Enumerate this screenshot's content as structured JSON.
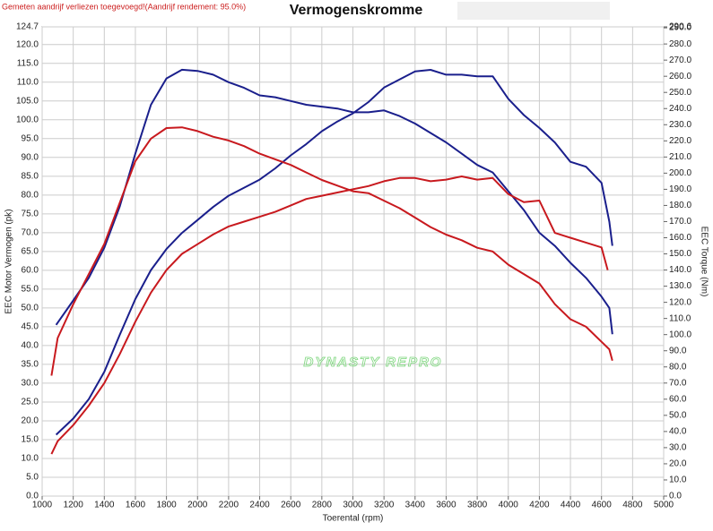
{
  "chart_data": {
    "type": "line",
    "title": "Vermogenskromme",
    "subtitle": "Gemeten aandrijf verliezen toegevoegd!(Aandrijf rendement: 95.0%)",
    "x_label": "Toerental (rpm)",
    "y_label": "EEC Motor Vermogen (pk)",
    "y2_label": "EEC Torque (Nm)",
    "watermark": "DYNASTY REPRO",
    "grid": true,
    "xlim": [
      1000,
      5000
    ],
    "xticks": [
      1000,
      1200,
      1400,
      1600,
      1800,
      2000,
      2200,
      2400,
      2600,
      2800,
      3000,
      3200,
      3400,
      3600,
      3800,
      4000,
      4200,
      4400,
      4600,
      4800,
      5000
    ],
    "ylim": [
      0,
      124.7
    ],
    "yticks": [
      {
        "value": 0,
        "label": "0.0"
      },
      {
        "value": 5,
        "label": "5.0"
      },
      {
        "value": 10,
        "label": "10.0"
      },
      {
        "value": 15,
        "label": "15.0"
      },
      {
        "value": 20,
        "label": "20.0"
      },
      {
        "value": 25,
        "label": "25.0"
      },
      {
        "value": 30,
        "label": "30.0"
      },
      {
        "value": 35,
        "label": "35.0"
      },
      {
        "value": 40,
        "label": "40.0"
      },
      {
        "value": 45,
        "label": "45.0"
      },
      {
        "value": 50,
        "label": "50.0"
      },
      {
        "value": 55,
        "label": "55.0"
      },
      {
        "value": 60,
        "label": "60.0"
      },
      {
        "value": 65,
        "label": "65.0"
      },
      {
        "value": 70,
        "label": "70.0"
      },
      {
        "value": 75,
        "label": "75.0"
      },
      {
        "value": 80,
        "label": "80.0"
      },
      {
        "value": 85,
        "label": "85.0"
      },
      {
        "value": 90,
        "label": "90.0"
      },
      {
        "value": 95,
        "label": "95.0"
      },
      {
        "value": 100,
        "label": "100.0"
      },
      {
        "value": 105,
        "label": "105.0"
      },
      {
        "value": 110,
        "label": "110.0"
      },
      {
        "value": 115,
        "label": "115.0"
      },
      {
        "value": 120,
        "label": "120.0"
      },
      124.7
    ],
    "y2lim": [
      0,
      290.6
    ],
    "y2ticks": [
      {
        "value": 0,
        "label": "0.0"
      },
      {
        "value": 10,
        "label": "10.0"
      },
      {
        "value": 20,
        "label": "20.0"
      },
      {
        "value": 30,
        "label": "30.0"
      },
      {
        "value": 40,
        "label": "40.0"
      },
      {
        "value": 50,
        "label": "50.0"
      },
      {
        "value": 60,
        "label": "60.0"
      },
      {
        "value": 70,
        "label": "70.0"
      },
      {
        "value": 80,
        "label": "80.0"
      },
      {
        "value": 90,
        "label": "90.0"
      },
      {
        "value": 100,
        "label": "100.0"
      },
      {
        "value": 110,
        "label": "110.0"
      },
      {
        "value": 120,
        "label": "120.0"
      },
      {
        "value": 130,
        "label": "130.0"
      },
      {
        "value": 140,
        "label": "140.0"
      },
      {
        "value": 150,
        "label": "150.0"
      },
      {
        "value": 160,
        "label": "160.0"
      },
      {
        "value": 170,
        "label": "170.0"
      },
      {
        "value": 180,
        "label": "180.0"
      },
      {
        "value": 190,
        "label": "190.0"
      },
      {
        "value": 200,
        "label": "200.0"
      },
      {
        "value": 210,
        "label": "210.0"
      },
      {
        "value": 220,
        "label": "220.0"
      },
      {
        "value": 230,
        "label": "230.0"
      },
      {
        "value": 240,
        "label": "240.0"
      },
      {
        "value": 250,
        "label": "250.0"
      },
      {
        "value": 260,
        "label": "260.0"
      },
      {
        "value": 270,
        "label": "270.0"
      },
      {
        "value": 280,
        "label": "280.0"
      },
      {
        "value": 290,
        "label": "290.0"
      },
      290.6
    ],
    "series": [
      {
        "color": "#1a1f8c",
        "axis": "y",
        "x": [
          1090,
          1200,
          1300,
          1400,
          1500,
          1600,
          1700,
          1800,
          1900,
          2000,
          2100,
          2200,
          2300,
          2400,
          2500,
          2600,
          2700,
          2800,
          2900,
          3000,
          3100,
          3200,
          3300,
          3400,
          3500,
          3600,
          3700,
          3800,
          3900,
          4000,
          4100,
          4200,
          4300,
          4400,
          4500,
          4600,
          4650,
          4670
        ],
        "values": [
          45.5,
          52,
          58,
          66,
          77,
          91,
          104,
          111,
          113.3,
          113,
          112,
          110,
          108.5,
          106.5,
          106,
          105,
          104,
          103.5,
          103,
          102,
          102,
          102.5,
          101,
          99,
          96.5,
          94,
          91,
          88,
          86,
          81,
          76,
          70,
          66.5,
          62,
          58,
          53,
          50,
          43
        ]
      },
      {
        "color": "#1a1f8c",
        "axis": "y2",
        "x": [
          1090,
          1200,
          1300,
          1400,
          1500,
          1600,
          1700,
          1800,
          1900,
          2000,
          2100,
          2200,
          2300,
          2400,
          2500,
          2600,
          2700,
          2800,
          2900,
          3000,
          3100,
          3200,
          3300,
          3400,
          3500,
          3600,
          3700,
          3800,
          3900,
          4000,
          4100,
          4200,
          4300,
          4400,
          4500,
          4600,
          4650,
          4670
        ],
        "values": [
          38,
          48,
          60,
          77,
          100,
          122,
          140,
          153,
          163,
          171,
          179,
          186,
          191,
          196,
          203,
          211,
          218,
          226,
          232,
          237,
          244,
          253,
          258,
          263,
          264,
          261,
          261,
          260,
          260,
          246,
          236,
          228,
          219,
          207,
          204,
          194,
          170,
          155
        ]
      },
      {
        "color": "#c8191e",
        "axis": "y",
        "x": [
          1060,
          1100,
          1200,
          1300,
          1400,
          1500,
          1600,
          1700,
          1800,
          1900,
          2000,
          2100,
          2200,
          2300,
          2400,
          2500,
          2600,
          2700,
          2800,
          2900,
          3000,
          3100,
          3200,
          3300,
          3400,
          3500,
          3600,
          3700,
          3800,
          3900,
          4000,
          4100,
          4200,
          4300,
          4400,
          4500,
          4600,
          4650,
          4670
        ],
        "values": [
          32,
          42,
          51,
          59,
          67,
          78,
          89,
          95,
          97.8,
          98,
          97,
          95.5,
          94.5,
          93,
          91,
          89.5,
          88,
          86,
          84,
          82.5,
          81,
          80.5,
          78.5,
          76.5,
          74,
          71.5,
          69.5,
          68,
          66,
          65,
          61.5,
          59,
          56.5,
          51,
          47,
          45,
          41,
          39,
          36
        ]
      },
      {
        "color": "#c8191e",
        "axis": "y2",
        "x": [
          1060,
          1100,
          1200,
          1300,
          1400,
          1500,
          1600,
          1700,
          1800,
          1900,
          2000,
          2100,
          2200,
          2300,
          2400,
          2500,
          2600,
          2700,
          2800,
          2900,
          3000,
          3100,
          3200,
          3300,
          3400,
          3500,
          3600,
          3700,
          3800,
          3900,
          4000,
          4100,
          4200,
          4300,
          4400,
          4500,
          4600,
          4640
        ],
        "values": [
          26,
          34,
          44,
          56,
          70,
          88,
          108,
          126,
          140,
          150,
          156,
          162,
          167,
          170,
          173,
          176,
          180,
          184,
          186,
          188,
          190,
          192,
          195,
          197,
          197,
          195,
          196,
          198,
          196,
          197,
          187,
          182,
          183,
          163,
          160,
          157,
          154,
          140
        ]
      }
    ]
  }
}
